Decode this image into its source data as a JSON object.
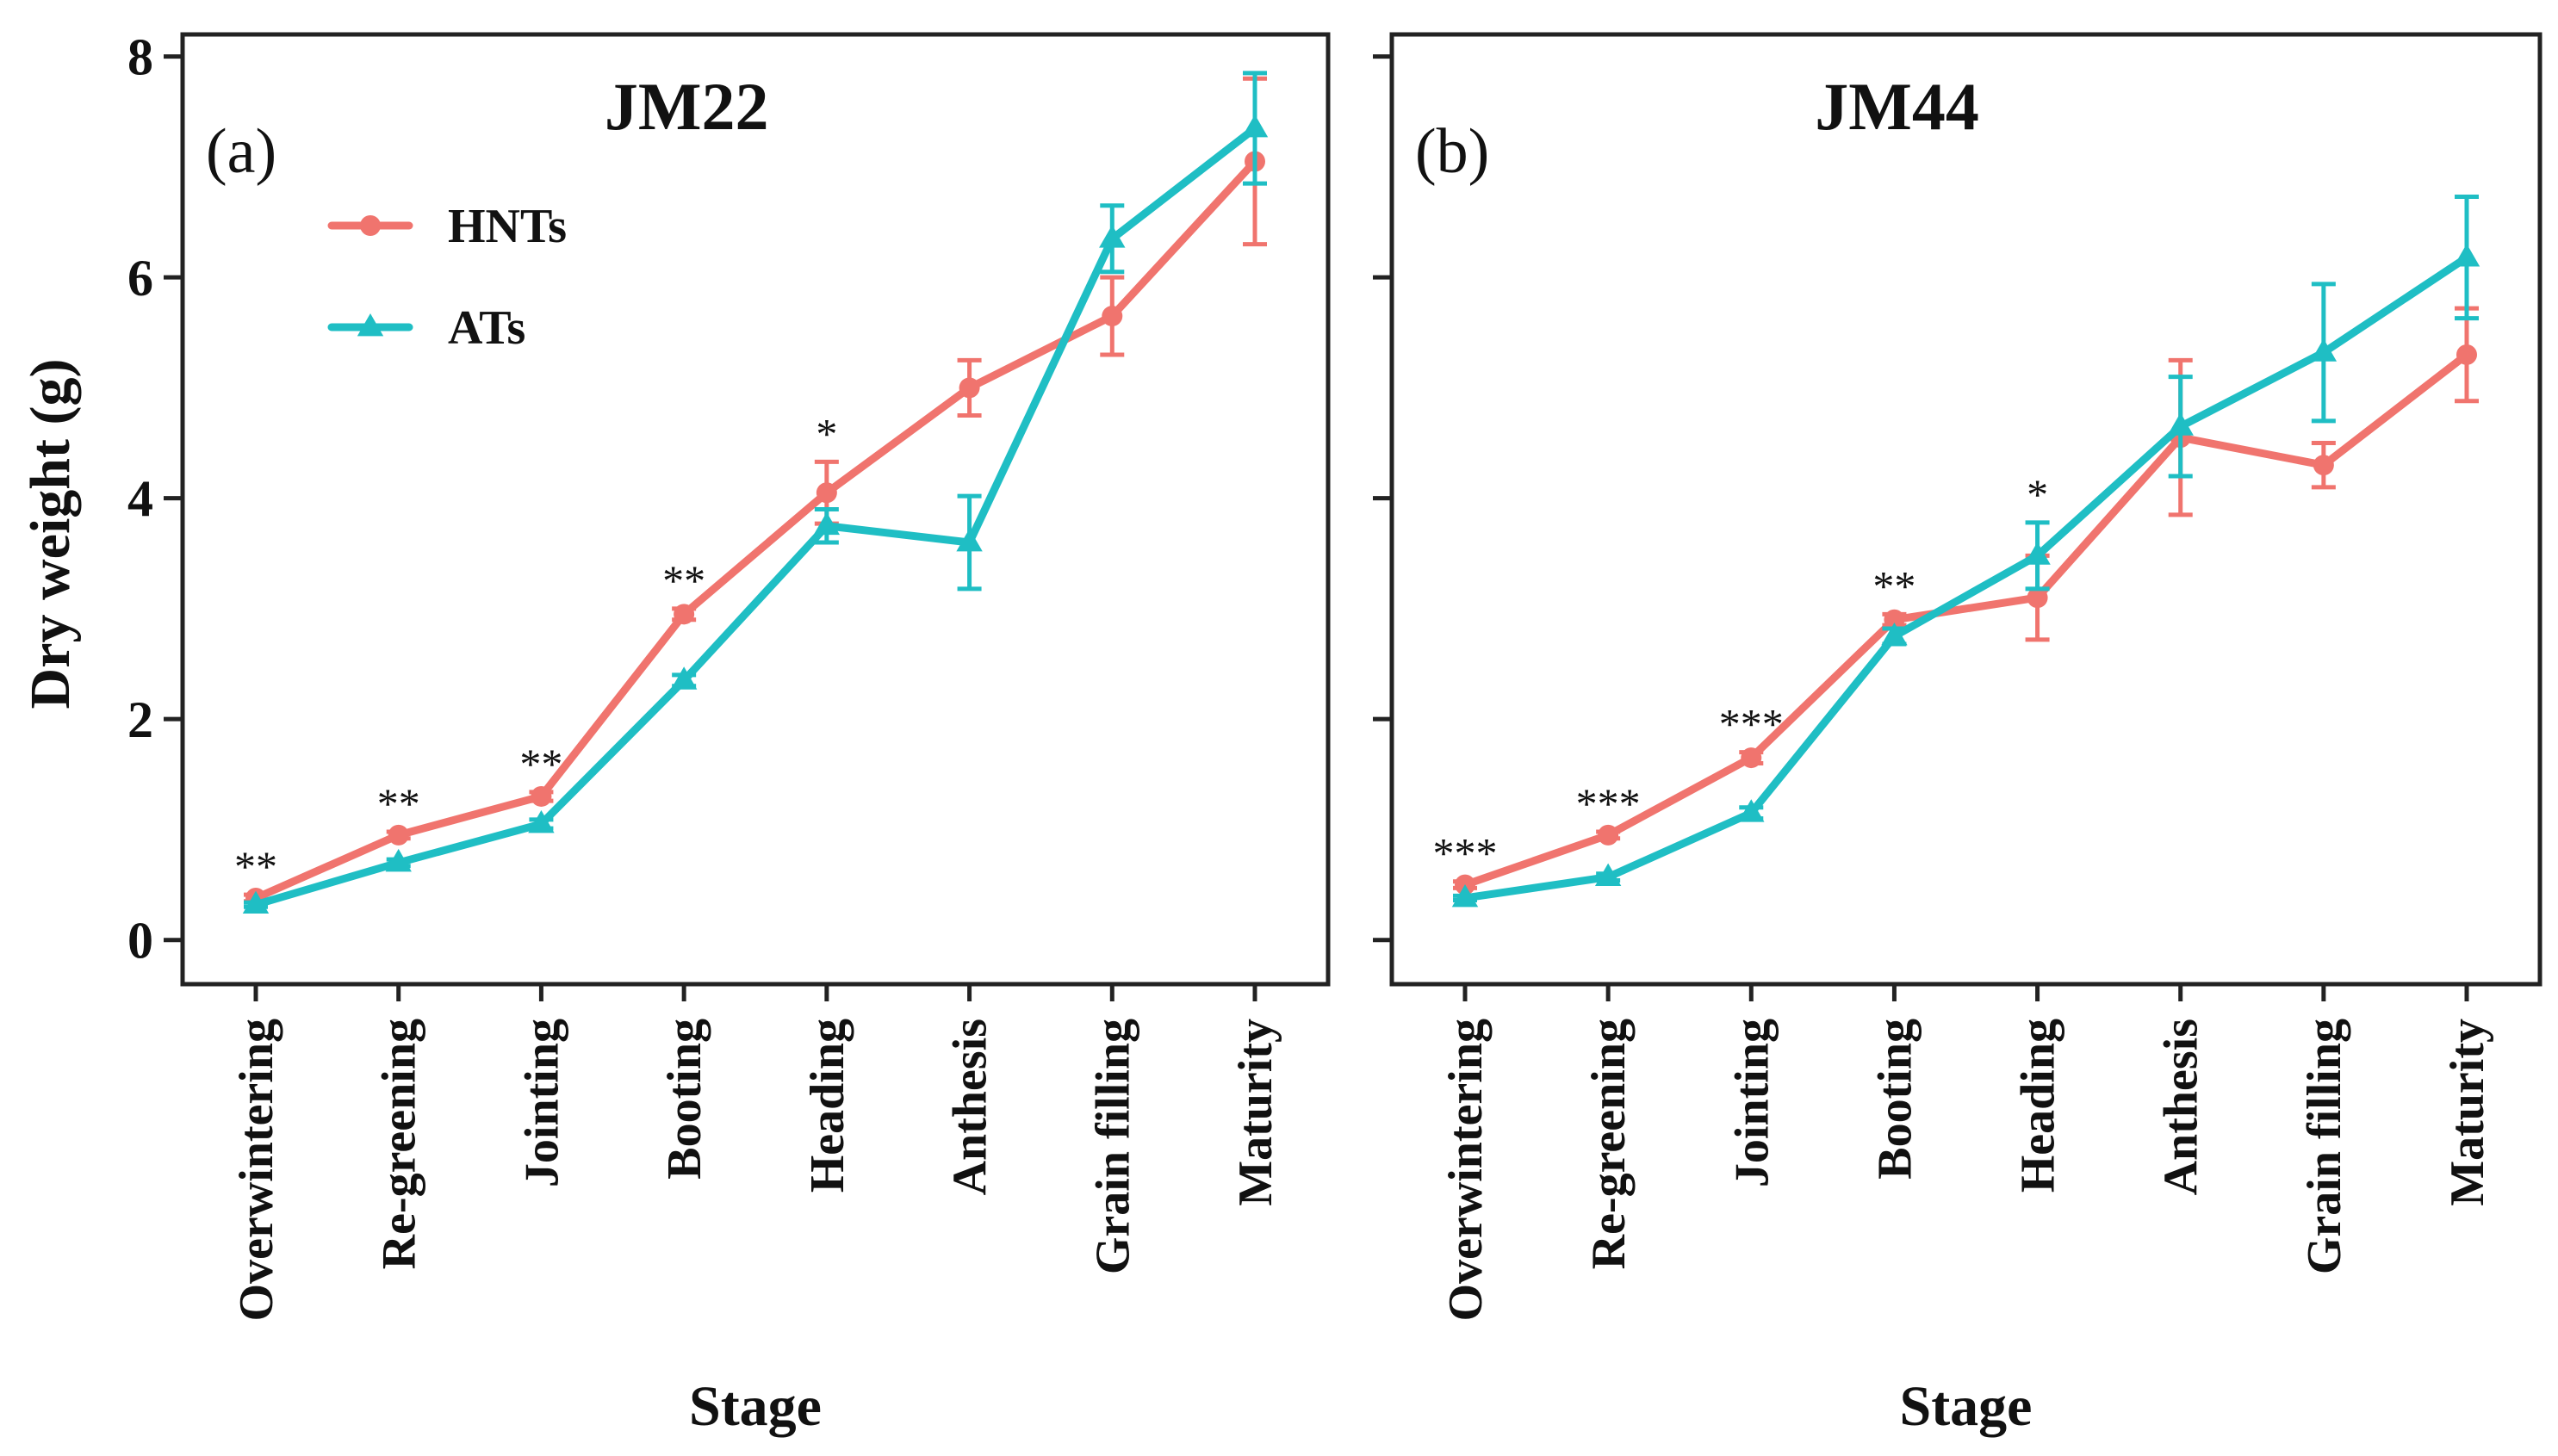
{
  "colors": {
    "HNTs": "#F0746E",
    "ATs": "#1FBEC4",
    "axis": "#222222"
  },
  "legend": [
    {
      "name": "HNTs",
      "marker": "circle"
    },
    {
      "name": "ATs",
      "marker": "triangle"
    }
  ],
  "chart_data": [
    {
      "type": "line",
      "title": "JM22",
      "panel_label": "(a)",
      "xlabel": "Stage",
      "ylabel": "Dry weight (g)",
      "ylim": [
        -0.4,
        8.2
      ],
      "yticks": [
        0,
        2,
        4,
        6,
        8
      ],
      "show_ytick_labels": true,
      "categories": [
        "Overwintering",
        "Re-greening",
        "Jointing",
        "Booting",
        "Heading",
        "Anthesis",
        "Grain filling",
        "Maturity"
      ],
      "series": [
        {
          "name": "HNTs",
          "values": [
            0.38,
            0.95,
            1.3,
            2.95,
            4.05,
            5.0,
            5.65,
            7.05
          ],
          "errors": [
            0.03,
            0.03,
            0.04,
            0.05,
            0.28,
            0.25,
            0.35,
            0.75
          ]
        },
        {
          "name": "ATs",
          "values": [
            0.32,
            0.7,
            1.05,
            2.35,
            3.75,
            3.6,
            6.35,
            7.35
          ],
          "errors": [
            0.02,
            0.03,
            0.04,
            0.05,
            0.15,
            0.42,
            0.3,
            0.5
          ]
        }
      ],
      "significance": [
        "**",
        "**",
        "**",
        "**",
        "*",
        "",
        "",
        ""
      ]
    },
    {
      "type": "line",
      "title": "JM44",
      "panel_label": "(b)",
      "xlabel": "Stage",
      "ylabel": "",
      "ylim": [
        -0.4,
        8.2
      ],
      "yticks": [
        0,
        2,
        4,
        6,
        8
      ],
      "show_ytick_labels": false,
      "categories": [
        "Overwintering",
        "Re-greening",
        "Jointing",
        "Booting",
        "Heading",
        "Anthesis",
        "Grain filling",
        "Maturity"
      ],
      "series": [
        {
          "name": "HNTs",
          "values": [
            0.5,
            0.95,
            1.65,
            2.9,
            3.1,
            4.55,
            4.3,
            5.3
          ],
          "errors": [
            0.03,
            0.03,
            0.05,
            0.05,
            0.38,
            0.7,
            0.2,
            0.42
          ]
        },
        {
          "name": "ATs",
          "values": [
            0.38,
            0.57,
            1.15,
            2.75,
            3.48,
            4.65,
            5.32,
            6.18
          ],
          "errors": [
            0.02,
            0.03,
            0.05,
            0.07,
            0.3,
            0.45,
            0.62,
            0.55
          ]
        }
      ],
      "significance": [
        "***",
        "***",
        "***",
        "**",
        "*",
        "",
        "",
        ""
      ]
    }
  ]
}
